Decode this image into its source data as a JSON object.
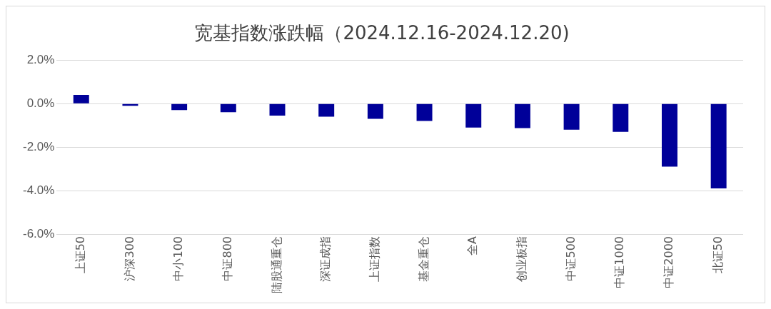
{
  "chart_data": {
    "type": "bar",
    "title": "宽基指数涨跌幅（2024.12.16-2024.12.20)",
    "categories": [
      "上证50",
      "沪深300",
      "中小100",
      "中证800",
      "陆股通重仓",
      "深证成指",
      "上证指数",
      "基金重仓",
      "全A",
      "创业板指",
      "中证500",
      "中证1000",
      "中证2000",
      "北证50"
    ],
    "values": [
      0.4,
      -0.1,
      -0.3,
      -0.4,
      -0.55,
      -0.6,
      -0.7,
      -0.8,
      -1.1,
      -1.13,
      -1.2,
      -1.3,
      -2.9,
      -3.9
    ],
    "color": "#000099",
    "ylim": [
      -6,
      2
    ],
    "yticks": [
      {
        "value": 2,
        "label": "2.0%"
      },
      {
        "value": 0,
        "label": "0.0%"
      },
      {
        "value": -2,
        "label": "-2.0%"
      },
      {
        "value": -4,
        "label": "-4.0%"
      },
      {
        "value": -6,
        "label": "-6.0%"
      }
    ],
    "grid": "y",
    "legend": false
  }
}
